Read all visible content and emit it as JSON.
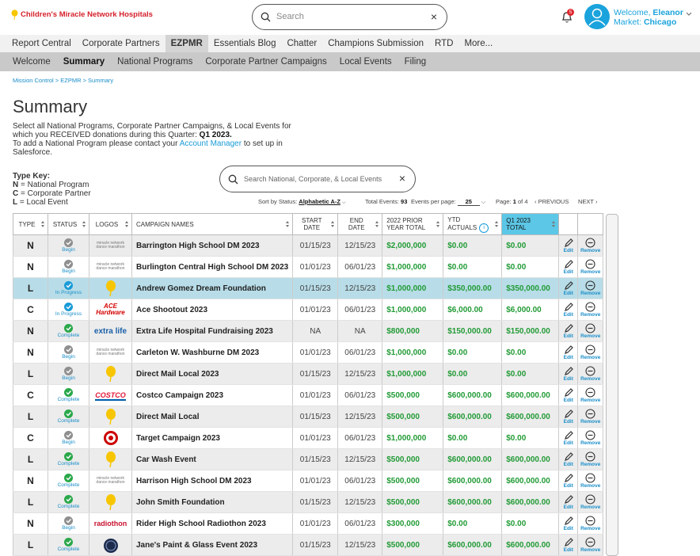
{
  "header": {
    "logo_text": "Children's Miracle Network Hospitals",
    "search_placeholder": "Search",
    "notification_count": 5,
    "welcome_prefix": "Welcome,",
    "user_name": "Eleanor",
    "market_prefix": "Market:",
    "market": "Chicago"
  },
  "nav_primary": [
    {
      "label": "Report Central"
    },
    {
      "label": "Corporate Partners"
    },
    {
      "label": "EZPMR",
      "active": true
    },
    {
      "label": "Essentials Blog"
    },
    {
      "label": "Chatter"
    },
    {
      "label": "Champions Submission"
    },
    {
      "label": "RTD"
    },
    {
      "label": "More..."
    }
  ],
  "nav_secondary": [
    {
      "label": "Welcome"
    },
    {
      "label": "Summary",
      "active": true
    },
    {
      "label": "National Programs"
    },
    {
      "label": "Corporate Partner Campaigns"
    },
    {
      "label": "Local Events"
    },
    {
      "label": "Filing"
    }
  ],
  "breadcrumb": "Mission Control > EZPMR > Summary",
  "page": {
    "title": "Summary",
    "description": {
      "text": "Select all National Programs, Corporate Partner Campaigns, & Local Events for which you RECEIVED donations during this Quarter:",
      "quarter": "Q1 2023.",
      "contact_before": "To add a National Program please contact your",
      "contact_link": "Account Manager",
      "contact_after": "to set up in Salesforce."
    },
    "type_key": {
      "title": "Type Key:",
      "items": [
        {
          "code": "N",
          "label": "= National Program"
        },
        {
          "code": "C",
          "label": "= Corporate Partner"
        },
        {
          "code": "L",
          "label": "= Local Event"
        }
      ]
    }
  },
  "table_search_placeholder": "Search National, Corporate, & Local Events",
  "pagination": {
    "sort_label": "Sort by Status:",
    "sort_value": "Alphabetic A-Z",
    "total_label": "Total Events:",
    "total": 93,
    "per_page_label": "Events per page:",
    "per_page": 25,
    "page_label": "Page:",
    "page": 1,
    "of_label": "of",
    "pages": 4,
    "previous": "PREVIOUS",
    "next": "NEXT"
  },
  "table": {
    "columns": [
      "TYPE",
      "STATUS",
      "LOGOS",
      "CAMPAIGN NAMES",
      "START DATE",
      "END DATE",
      "2022 PRIOR YEAR TOTAL",
      "YTD ACTUALS",
      "Q1 2023 TOTAL"
    ],
    "edit_label": "Edit",
    "remove_label": "Remove",
    "rows": [
      {
        "type": "N",
        "status": "Begin",
        "logo": "miracle network dance marathon",
        "name": "Barrington High School DM 2023",
        "start": "01/15/23",
        "end": "12/15/23",
        "prior": "$2,000,000",
        "ytd": "$0.00",
        "q1": "$0.00"
      },
      {
        "type": "N",
        "status": "Begin",
        "logo": "miracle network dance marathon",
        "name": "Burlington Central High School DM 2023",
        "start": "01/01/23",
        "end": "06/01/23",
        "prior": "$1,000,000",
        "ytd": "$0.00",
        "q1": "$0.00"
      },
      {
        "type": "L",
        "status": "In Progress",
        "logo_icon": "balloon",
        "name": "Andrew Gomez Dream Foundation",
        "start": "01/15/23",
        "end": "12/15/23",
        "prior": "$1,000,000",
        "ytd": "$350,000.00",
        "q1": "$350,000.00",
        "highlighted": true
      },
      {
        "type": "C",
        "status": "In Progress",
        "logo": "ACE Hardware",
        "name": "Ace Shootout 2023",
        "start": "01/01/23",
        "end": "06/01/23",
        "prior": "$1,000,000",
        "ytd": "$6,000.00",
        "q1": "$6,000.00"
      },
      {
        "type": "N",
        "status": "Complete",
        "logo": "extra life",
        "name": "Extra Life Hospital Fundraising 2023",
        "start": "NA",
        "end": "NA",
        "prior": "$800,000",
        "ytd": "$150,000.00",
        "q1": "$150,000.00"
      },
      {
        "type": "N",
        "status": "Begin",
        "logo": "miracle network dance marathon",
        "name": "Carleton W. Washburne DM 2023",
        "start": "01/01/23",
        "end": "06/01/23",
        "prior": "$1,000,000",
        "ytd": "$0.00",
        "q1": "$0.00"
      },
      {
        "type": "L",
        "status": "Begin",
        "logo_icon": "balloon",
        "name": "Direct Mail Local 2023",
        "start": "01/15/23",
        "end": "12/15/23",
        "prior": "$1,000,000",
        "ytd": "$0.00",
        "q1": "$0.00"
      },
      {
        "type": "C",
        "status": "Complete",
        "logo": "COSTCO",
        "name": "Costco Campaign 2023",
        "start": "01/01/23",
        "end": "06/01/23",
        "prior": "$500,000",
        "ytd": "$600,000.00",
        "q1": "$600,000.00"
      },
      {
        "type": "L",
        "status": "Complete",
        "logo_icon": "balloon",
        "name": "Direct Mail Local",
        "start": "01/15/23",
        "end": "12/15/23",
        "prior": "$500,000",
        "ytd": "$600,000.00",
        "q1": "$600,000.00"
      },
      {
        "type": "C",
        "status": "Begin",
        "logo_icon": "target",
        "name": "Target Campaign 2023",
        "start": "01/01/23",
        "end": "06/01/23",
        "prior": "$1,000,000",
        "ytd": "$0.00",
        "q1": "$0.00"
      },
      {
        "type": "L",
        "status": "Complete",
        "logo_icon": "balloon",
        "name": "Car Wash Event",
        "start": "01/15/23",
        "end": "12/15/23",
        "prior": "$500,000",
        "ytd": "$600,000.00",
        "q1": "$600,000.00"
      },
      {
        "type": "N",
        "status": "Complete",
        "logo": "miracle network dance marathon",
        "name": "Harrison High School DM 2023",
        "start": "01/01/23",
        "end": "06/01/23",
        "prior": "$500,000",
        "ytd": "$600,000.00",
        "q1": "$600,000.00"
      },
      {
        "type": "L",
        "status": "Complete",
        "logo_icon": "balloon",
        "name": "John Smith Foundation",
        "start": "01/15/23",
        "end": "12/15/23",
        "prior": "$500,000",
        "ytd": "$600,000.00",
        "q1": "$600,000.00"
      },
      {
        "type": "N",
        "status": "Begin",
        "logo": "radiothon",
        "name": "Rider High School Radiothon 2023",
        "start": "01/01/23",
        "end": "06/01/23",
        "prior": "$300,000",
        "ytd": "$0.00",
        "q1": "$0.00"
      },
      {
        "type": "L",
        "status": "Complete",
        "logo_icon": "seal",
        "name": "Jane's Paint & Glass Event 2023",
        "start": "01/15/23",
        "end": "12/15/23",
        "prior": "$500,000",
        "ytd": "$600,000.00",
        "q1": "$600,000.00"
      }
    ]
  }
}
